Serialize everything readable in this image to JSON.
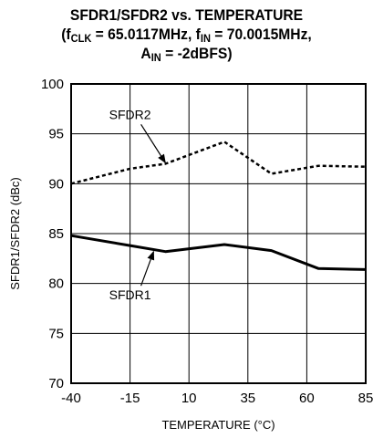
{
  "chart_data": {
    "type": "line",
    "title": {
      "line1": "SFDR1/SFDR2 vs. TEMPERATURE",
      "line2_prefix": "(f",
      "fclk_sub": "CLK",
      "line2_mid": " = 65.0117MHz, f",
      "fin_sub": "IN",
      "line2_suffix": " = 70.0015MHz,",
      "line3_prefix": "A",
      "ain_sub": "IN",
      "line3_suffix": " = -2dBFS)"
    },
    "xlabel": "TEMPERATURE (°C)",
    "ylabel": "SFDR1/SFDR2 (dBc)",
    "xlim": [
      -40,
      85
    ],
    "ylim": [
      70,
      100
    ],
    "xticks": [
      -40,
      -15,
      10,
      35,
      60,
      85
    ],
    "yticks": [
      70,
      75,
      80,
      85,
      90,
      95,
      100
    ],
    "grid": true,
    "series": [
      {
        "name": "SFDR2",
        "style": "dashed",
        "x": [
          -40,
          -15,
          0,
          25,
          45,
          65,
          85
        ],
        "y": [
          90.0,
          91.5,
          92.0,
          94.2,
          91.0,
          91.8,
          91.7
        ]
      },
      {
        "name": "SFDR1",
        "style": "solid",
        "x": [
          -40,
          -15,
          0,
          25,
          45,
          65,
          85
        ],
        "y": [
          84.8,
          83.8,
          83.2,
          83.9,
          83.3,
          81.5,
          81.4
        ]
      }
    ],
    "annotations": [
      {
        "text": "SFDR2",
        "series": "SFDR2",
        "label_at": [
          -15,
          96.5
        ],
        "arrow_to": [
          0,
          92.1
        ]
      },
      {
        "text": "SFDR1",
        "series": "SFDR1",
        "label_at": [
          -15,
          78.4
        ],
        "arrow_to": [
          -5,
          83.2
        ]
      }
    ],
    "colors": {
      "line": "#000000",
      "grid": "#000000",
      "background": "#ffffff"
    }
  }
}
